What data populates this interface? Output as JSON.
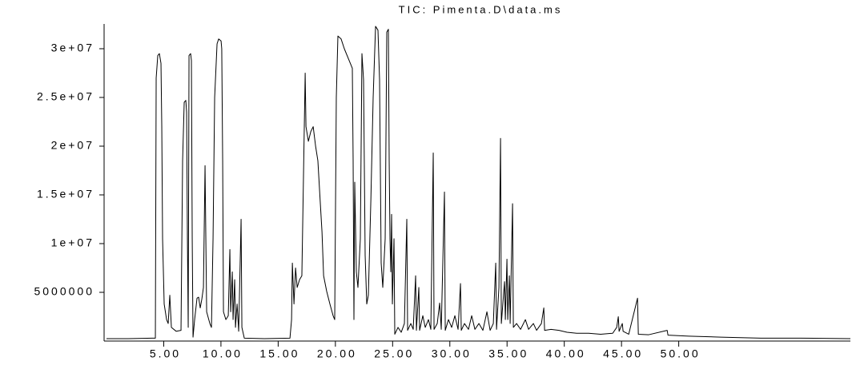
{
  "chart_data": {
    "type": "line",
    "title": "TIC: Pimenta.D\\data.ms",
    "x": [
      0,
      1.89,
      3.99,
      4.27,
      4.34,
      4.48,
      4.62,
      4.76,
      4.83,
      4.9,
      5.04,
      5.25,
      5.39,
      5.53,
      5.67,
      6.09,
      6.51,
      6.65,
      6.79,
      6.93,
      7.0,
      7.07,
      7.14,
      7.21,
      7.35,
      7.42,
      7.49,
      7.56,
      7.7,
      7.91,
      8.05,
      8.19,
      8.33,
      8.47,
      8.61,
      8.68,
      8.75,
      9.03,
      9.17,
      9.31,
      9.45,
      9.66,
      9.8,
      10.01,
      10.07,
      10.15,
      10.22,
      10.43,
      10.64,
      10.78,
      10.85,
      10.99,
      11.06,
      11.2,
      11.27,
      11.41,
      11.55,
      11.76,
      11.83,
      12.04,
      13.79,
      16.03,
      16.17,
      16.24,
      16.38,
      16.52,
      16.66,
      16.87,
      17.07,
      17.29,
      17.36,
      17.43,
      17.64,
      17.85,
      18.06,
      18.27,
      18.47,
      18.69,
      18.83,
      18.97,
      19.24,
      19.52,
      19.8,
      19.94,
      20.08,
      20.22,
      20.5,
      20.78,
      21.2,
      21.48,
      21.55,
      21.62,
      21.69,
      21.83,
      21.97,
      22.18,
      22.32,
      22.46,
      22.6,
      22.74,
      22.88,
      23.1,
      23.3,
      23.51,
      23.72,
      23.86,
      24.0,
      24.14,
      24.35,
      24.49,
      24.63,
      24.7,
      24.77,
      24.84,
      24.91,
      24.98,
      25.12,
      25.19,
      25.47,
      25.75,
      26.03,
      26.24,
      26.31,
      26.59,
      26.8,
      27.01,
      27.08,
      27.29,
      27.36,
      27.64,
      27.85,
      28.13,
      28.34,
      28.55,
      28.62,
      28.9,
      29.11,
      29.25,
      29.53,
      29.6,
      29.88,
      30.16,
      30.44,
      30.72,
      30.93,
      31.0,
      31.28,
      31.63,
      31.91,
      32.19,
      32.54,
      32.89,
      33.24,
      33.52,
      33.8,
      34.01,
      34.08,
      34.29,
      34.43,
      34.5,
      34.78,
      34.85,
      34.99,
      35.06,
      35.2,
      35.27,
      35.48,
      35.55,
      35.83,
      36.18,
      36.6,
      36.88,
      37.3,
      37.58,
      38.0,
      38.21,
      38.28,
      38.84,
      39.54,
      40.24,
      41.08,
      42.13,
      43.18,
      44.23,
      44.58,
      44.72,
      44.79,
      45.07,
      45.14,
      45.63,
      46.4,
      46.47,
      47.38,
      48.99,
      49.06,
      50.88,
      53.67,
      57.17,
      60.67,
      65.0
    ],
    "series": [
      {
        "color": "#000000",
        "values": [
          250000,
          250000,
          300000,
          300000,
          27000000,
          29300000,
          29500000,
          28500000,
          22000000,
          10500000,
          3800000,
          2200000,
          1800000,
          4700000,
          1400000,
          1000000,
          1100000,
          18500000,
          24500000,
          24700000,
          23500000,
          10500000,
          1400000,
          29300000,
          29500000,
          28800000,
          10500000,
          400000,
          2200000,
          4400000,
          4500000,
          3400000,
          4300000,
          5500000,
          18000000,
          10500000,
          3000000,
          1800000,
          1400000,
          10500000,
          25000000,
          30500000,
          31000000,
          30800000,
          30000000,
          18500000,
          3000000,
          2200000,
          2600000,
          9400000,
          3000000,
          7100000,
          2200000,
          6300000,
          1400000,
          3800000,
          1000000,
          12500000,
          1400000,
          300000,
          250000,
          300000,
          2200000,
          8000000,
          3800000,
          7500000,
          5500000,
          6300000,
          6700000,
          22500000,
          27500000,
          22000000,
          20500000,
          21500000,
          22000000,
          20000000,
          18500000,
          14000000,
          11200000,
          6700000,
          5100000,
          3800000,
          2600000,
          2200000,
          25000000,
          31300000,
          31000000,
          30000000,
          28800000,
          28000000,
          18500000,
          2200000,
          16300000,
          7100000,
          5500000,
          10500000,
          29500000,
          26800000,
          8800000,
          3800000,
          4700000,
          14500000,
          25000000,
          32300000,
          31900000,
          26800000,
          8000000,
          5500000,
          10500000,
          31700000,
          32000000,
          18500000,
          10500000,
          7100000,
          13000000,
          3800000,
          10500000,
          700000,
          1400000,
          900000,
          1800000,
          12500000,
          1100000,
          1800000,
          1200000,
          6700000,
          1100000,
          5500000,
          1100000,
          2600000,
          1400000,
          2200000,
          1200000,
          19300000,
          1200000,
          1800000,
          3900000,
          1200000,
          15300000,
          1100000,
          2200000,
          1400000,
          2600000,
          1200000,
          5900000,
          1100000,
          1800000,
          1200000,
          2600000,
          1200000,
          1800000,
          1100000,
          3000000,
          1100000,
          1800000,
          8000000,
          1200000,
          5500000,
          20800000,
          1800000,
          6100000,
          2200000,
          8400000,
          2200000,
          6700000,
          1800000,
          14100000,
          1400000,
          1800000,
          1200000,
          2200000,
          1200000,
          1800000,
          1100000,
          1800000,
          3400000,
          1100000,
          1200000,
          1100000,
          900000,
          800000,
          800000,
          700000,
          800000,
          1400000,
          2500000,
          1000000,
          1800000,
          1000000,
          700000,
          4400000,
          700000,
          650000,
          1100000,
          600000,
          500000,
          400000,
          300000,
          300000,
          250000
        ]
      }
    ],
    "xlim": [
      0,
      65
    ],
    "ylim": [
      0,
      32500000
    ],
    "xticks": [
      {
        "value": 5,
        "label": "5.00"
      },
      {
        "value": 10,
        "label": "10.00"
      },
      {
        "value": 15,
        "label": "15.00"
      },
      {
        "value": 20,
        "label": "20.00"
      },
      {
        "value": 25,
        "label": "25.00"
      },
      {
        "value": 30,
        "label": "30.00"
      },
      {
        "value": 35,
        "label": "35.00"
      },
      {
        "value": 40,
        "label": "40.00"
      },
      {
        "value": 45,
        "label": "45.00"
      },
      {
        "value": 50,
        "label": "50.00"
      }
    ],
    "yticks": [
      5000000,
      {
        "value": 10000000,
        "label": "1e+07"
      },
      {
        "value": 15000000,
        "label": "1.5e+07"
      },
      {
        "value": 20000000,
        "label": "2e+07"
      },
      {
        "value": 25000000,
        "label": "2.5e+07"
      },
      {
        "value": 30000000,
        "label": "3e+07"
      }
    ],
    "grid": false
  }
}
